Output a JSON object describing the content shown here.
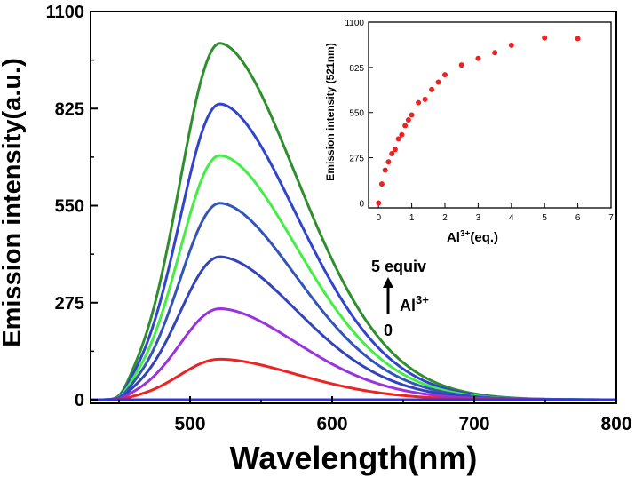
{
  "chart_data": [
    {
      "type": "line",
      "title": "",
      "xlabel": "Wavelength(nm)",
      "ylabel": "Emission intensity(a.u.)",
      "xlim": [
        430,
        800
      ],
      "ylim": [
        -10,
        1100
      ],
      "x_ticks": [
        "500",
        "600",
        "700",
        "800"
      ],
      "y_ticks": [
        "0",
        "275",
        "550",
        "825",
        "1100"
      ],
      "x_tick_values": [
        500,
        600,
        700,
        800
      ],
      "y_tick_values": [
        0,
        275,
        550,
        825,
        1100
      ],
      "grid": false,
      "legend": "none",
      "annotation": {
        "top": "5 equiv",
        "bottom": "0",
        "ion": "Al",
        "ion_sup": "3+"
      },
      "peak_wavelength": 521,
      "series": [
        {
          "color": "#2f8f2f",
          "peak": 1010
        },
        {
          "color": "#3344cc",
          "peak": 838
        },
        {
          "color": "#44ee44",
          "peak": 692
        },
        {
          "color": "#3355bb",
          "peak": 557
        },
        {
          "color": "#3344bb",
          "peak": 405
        },
        {
          "color": "#9933dd",
          "peak": 258
        },
        {
          "color": "#ee2222",
          "peak": 115
        },
        {
          "color": "#3333dd",
          "peak": 0
        }
      ]
    },
    {
      "type": "scatter",
      "title": "",
      "xlabel_main": "Al",
      "xlabel_sup": "3+",
      "xlabel_suffix": "(eq.)",
      "ylabel": "Emission intensity (521nm)",
      "xlim": [
        -0.3,
        7
      ],
      "ylim": [
        -30,
        1100
      ],
      "x_ticks": [
        "0",
        "1",
        "2",
        "3",
        "4",
        "5",
        "6",
        "7"
      ],
      "y_ticks": [
        "0",
        "275",
        "550",
        "825",
        "1100"
      ],
      "x_tick_values": [
        0,
        1,
        2,
        3,
        4,
        5,
        6,
        7
      ],
      "y_tick_values": [
        0,
        275,
        550,
        825,
        1100
      ],
      "grid": false,
      "marker_color": "#ee2222",
      "points": [
        {
          "x": 0,
          "y": 0
        },
        {
          "x": 0.1,
          "y": 115
        },
        {
          "x": 0.2,
          "y": 200
        },
        {
          "x": 0.3,
          "y": 250
        },
        {
          "x": 0.4,
          "y": 300
        },
        {
          "x": 0.5,
          "y": 325
        },
        {
          "x": 0.6,
          "y": 390
        },
        {
          "x": 0.7,
          "y": 415
        },
        {
          "x": 0.8,
          "y": 470
        },
        {
          "x": 0.9,
          "y": 505
        },
        {
          "x": 1.0,
          "y": 535
        },
        {
          "x": 1.2,
          "y": 610
        },
        {
          "x": 1.4,
          "y": 630
        },
        {
          "x": 1.6,
          "y": 690
        },
        {
          "x": 1.8,
          "y": 735
        },
        {
          "x": 2.0,
          "y": 780
        },
        {
          "x": 2.5,
          "y": 840
        },
        {
          "x": 3.0,
          "y": 880
        },
        {
          "x": 3.5,
          "y": 915
        },
        {
          "x": 4.0,
          "y": 960
        },
        {
          "x": 5.0,
          "y": 1005
        },
        {
          "x": 6.0,
          "y": 1000
        }
      ]
    }
  ]
}
